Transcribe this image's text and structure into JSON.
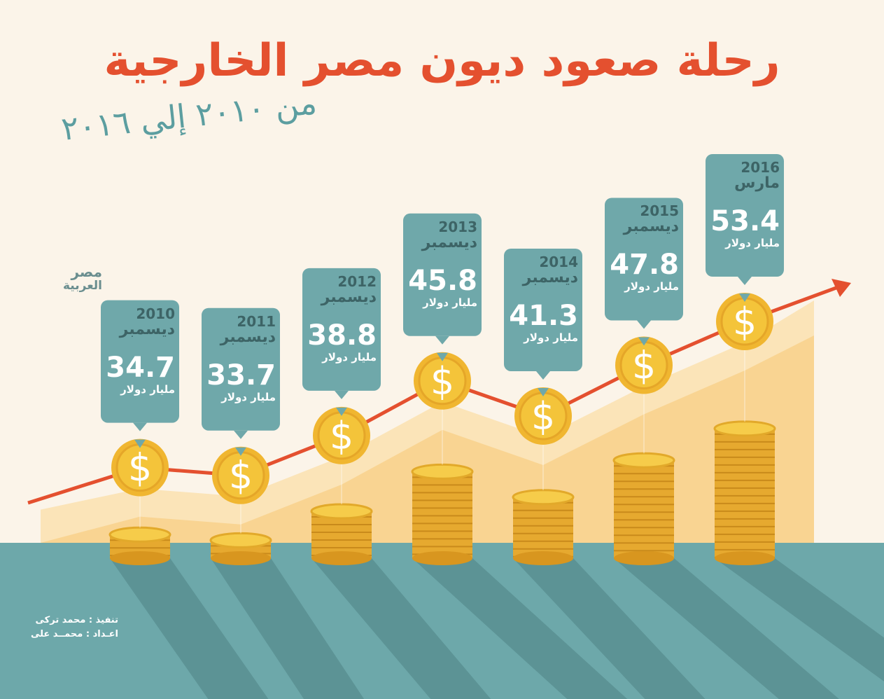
{
  "header": {
    "title": "رحلة صعود ديون مصر الخارجية",
    "subtitle": "من ٢٠١٠ إلي ٢٠١٦"
  },
  "logo": {
    "line1": "مصر",
    "line2": "العربية"
  },
  "credits": {
    "design": "تنفيذ : محمد تركى",
    "prepared": "اعـداد : محمــد على"
  },
  "colors": {
    "background": "#fbf4e9",
    "title": "#e4502f",
    "callout": "#6fa8aa",
    "ground": "#6da8aa",
    "area_light": "#fbe4b8",
    "area_dark": "#f8cf86",
    "line": "#e4502f",
    "coin": "#f4c43a"
  },
  "chart_data": {
    "type": "bar",
    "categories": [
      "2010",
      "2011",
      "2012",
      "2013",
      "2014",
      "2015",
      "2016"
    ],
    "periods": [
      "ديسمبر",
      "ديسمبر",
      "ديسمبر",
      "ديسمبر",
      "ديسمبر",
      "ديسمبر",
      "مارس"
    ],
    "values": [
      34.7,
      33.7,
      38.8,
      45.8,
      41.3,
      47.8,
      53.4
    ],
    "value_labels": [
      "34.7",
      "33.7",
      "38.8",
      "45.8",
      "41.3",
      "47.8",
      "53.4"
    ],
    "unit": "مليار دولار",
    "title": "رحلة صعود ديون مصر الخارجية",
    "xlabel": "",
    "ylabel": "",
    "grid": false,
    "legend": "none"
  }
}
